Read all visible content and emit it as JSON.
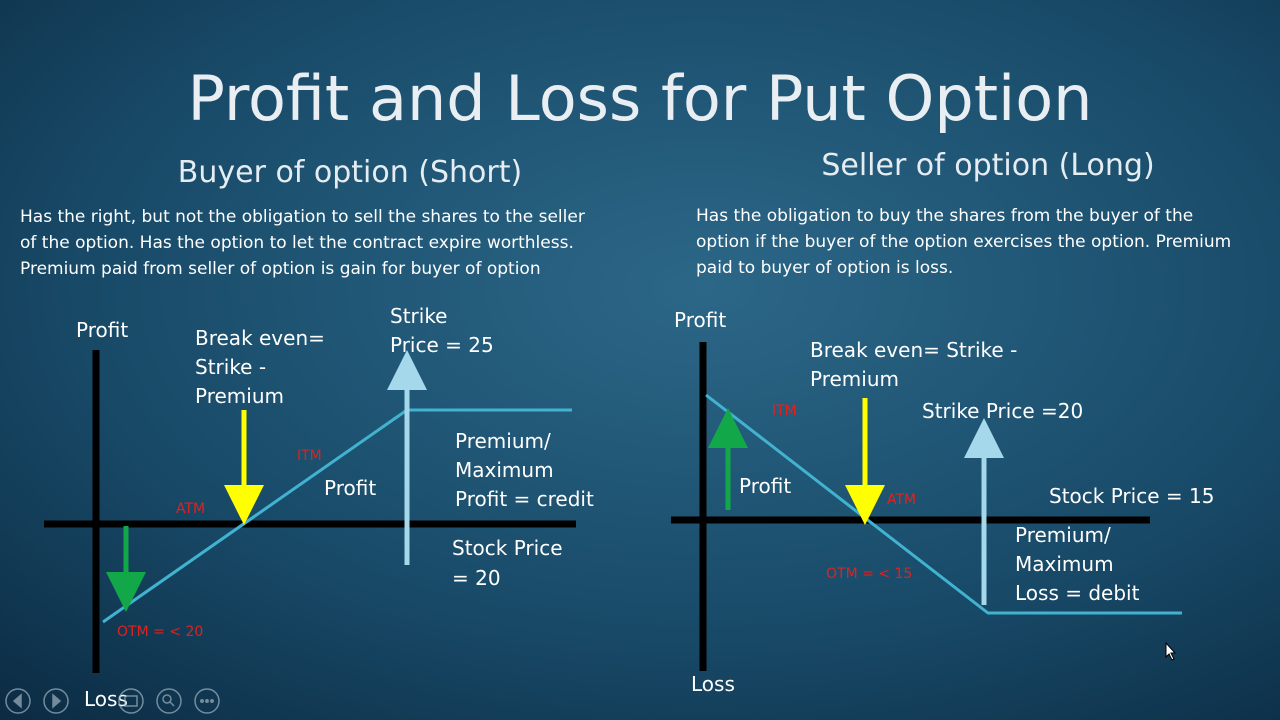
{
  "title": "Profit and Loss for Put Option",
  "buyer": {
    "heading": "Buyer of option (Short)",
    "description": [
      "Has the right, but not the obligation to sell  the shares to  the seller",
      "of the option. Has the option to let the contract expire worthless.",
      "Premium paid from seller of option is gain for buyer of option"
    ],
    "diagram": {
      "axis_top": "Profit",
      "axis_bottom": "Loss",
      "break_even": [
        "Break even=",
        "Strike -",
        "Premium"
      ],
      "strike_price": [
        "Strike",
        "Price = 25"
      ],
      "itm": "ITM",
      "atm": "ATM",
      "profit": "Profit",
      "premium": [
        "Premium/",
        "Maximum",
        "Profit = credit"
      ],
      "stock_price": [
        "Stock Price",
        "= 20"
      ],
      "otm": "OTM = < 20"
    }
  },
  "seller": {
    "heading": "Seller of option (Long)",
    "description": [
      "Has the obligation to buy  the shares from the buyer of the",
      "option if the buyer of the option exercises the option. Premium",
      "paid to buyer of option is loss."
    ],
    "diagram": {
      "axis_top": "Profit",
      "axis_bottom": "Loss",
      "break_even": [
        "Break even= Strike -",
        "Premium"
      ],
      "itm": "ITM",
      "strike_price": "Strike Price =20",
      "profit": "Profit",
      "atm": "ATM",
      "stock_price": "Stock Price = 15",
      "premium": [
        "Premium/",
        "Maximum",
        "Loss = debit"
      ],
      "otm": "OTM = < 15"
    }
  }
}
